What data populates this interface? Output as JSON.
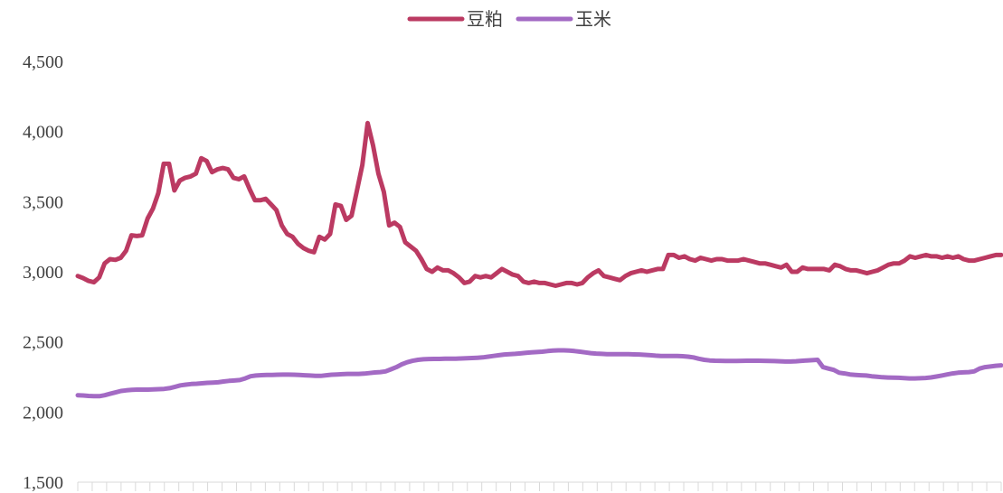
{
  "chart_data": {
    "type": "line",
    "title": "",
    "xlabel": "",
    "ylabel": "",
    "ylim": [
      1500,
      4500
    ],
    "yticks": [
      1500,
      2000,
      2500,
      3000,
      3500,
      4000,
      4500
    ],
    "ytick_labels": [
      "1,500",
      "2,000",
      "2,500",
      "3,000",
      "3,500",
      "4,000",
      "4,500"
    ],
    "grid": false,
    "legend_position": "top-center",
    "x_tick_count": 64,
    "series": [
      {
        "name": "豆粕",
        "color": "#bb3a62",
        "values": [
          2970,
          2955,
          2935,
          2925,
          2960,
          3060,
          3090,
          3085,
          3100,
          3150,
          3260,
          3255,
          3260,
          3380,
          3450,
          3560,
          3770,
          3770,
          3580,
          3650,
          3670,
          3680,
          3700,
          3810,
          3790,
          3710,
          3730,
          3740,
          3730,
          3670,
          3660,
          3680,
          3590,
          3510,
          3510,
          3520,
          3480,
          3440,
          3330,
          3270,
          3250,
          3200,
          3170,
          3150,
          3140,
          3250,
          3230,
          3270,
          3480,
          3470,
          3370,
          3400,
          3580,
          3760,
          4060,
          3900,
          3700,
          3570,
          3330,
          3350,
          3320,
          3210,
          3180,
          3150,
          3090,
          3020,
          3000,
          3030,
          3010,
          3010,
          2990,
          2960,
          2920,
          2930,
          2970,
          2960,
          2970,
          2960,
          2990,
          3020,
          3000,
          2980,
          2970,
          2930,
          2920,
          2930,
          2920,
          2920,
          2910,
          2900,
          2910,
          2920,
          2920,
          2910,
          2920,
          2960,
          2990,
          3010,
          2970,
          2960,
          2950,
          2940,
          2970,
          2990,
          3000,
          3010,
          3000,
          3010,
          3020,
          3020,
          3120,
          3120,
          3100,
          3110,
          3090,
          3080,
          3100,
          3090,
          3080,
          3090,
          3090,
          3080,
          3080,
          3080,
          3090,
          3080,
          3070,
          3060,
          3060,
          3050,
          3040,
          3030,
          3050,
          3000,
          3000,
          3030,
          3020,
          3020,
          3020,
          3020,
          3010,
          3050,
          3040,
          3020,
          3010,
          3010,
          3000,
          2990,
          3000,
          3010,
          3030,
          3050,
          3060,
          3060,
          3080,
          3110,
          3100,
          3110,
          3120,
          3110,
          3110,
          3100,
          3110,
          3100,
          3110,
          3090,
          3080,
          3080,
          3090,
          3100,
          3110,
          3120,
          3120
        ]
      },
      {
        "name": "玉米",
        "color": "#a36ac4",
        "values": [
          2120,
          2118,
          2115,
          2113,
          2113,
          2120,
          2130,
          2140,
          2150,
          2155,
          2158,
          2160,
          2160,
          2160,
          2162,
          2163,
          2165,
          2170,
          2180,
          2190,
          2195,
          2200,
          2202,
          2205,
          2208,
          2210,
          2212,
          2218,
          2222,
          2225,
          2228,
          2240,
          2255,
          2260,
          2263,
          2265,
          2265,
          2266,
          2267,
          2267,
          2266,
          2265,
          2262,
          2260,
          2258,
          2258,
          2262,
          2266,
          2268,
          2270,
          2272,
          2272,
          2272,
          2274,
          2278,
          2282,
          2285,
          2290,
          2305,
          2320,
          2340,
          2355,
          2365,
          2372,
          2376,
          2378,
          2379,
          2379,
          2380,
          2380,
          2380,
          2382,
          2383,
          2385,
          2387,
          2390,
          2395,
          2400,
          2405,
          2410,
          2413,
          2415,
          2418,
          2422,
          2425,
          2428,
          2430,
          2435,
          2438,
          2440,
          2440,
          2438,
          2435,
          2430,
          2425,
          2420,
          2417,
          2415,
          2413,
          2412,
          2412,
          2412,
          2412,
          2411,
          2410,
          2408,
          2405,
          2402,
          2400,
          2400,
          2400,
          2400,
          2398,
          2395,
          2390,
          2380,
          2372,
          2368,
          2366,
          2365,
          2364,
          2364,
          2364,
          2365,
          2366,
          2366,
          2366,
          2365,
          2364,
          2363,
          2362,
          2360,
          2360,
          2362,
          2365,
          2368,
          2370,
          2372,
          2320,
          2310,
          2300,
          2280,
          2275,
          2268,
          2265,
          2262,
          2260,
          2255,
          2252,
          2248,
          2246,
          2245,
          2244,
          2242,
          2240,
          2240,
          2241,
          2243,
          2247,
          2253,
          2260,
          2268,
          2275,
          2280,
          2283,
          2285,
          2290,
          2310,
          2320,
          2325,
          2330,
          2333
        ]
      }
    ]
  }
}
